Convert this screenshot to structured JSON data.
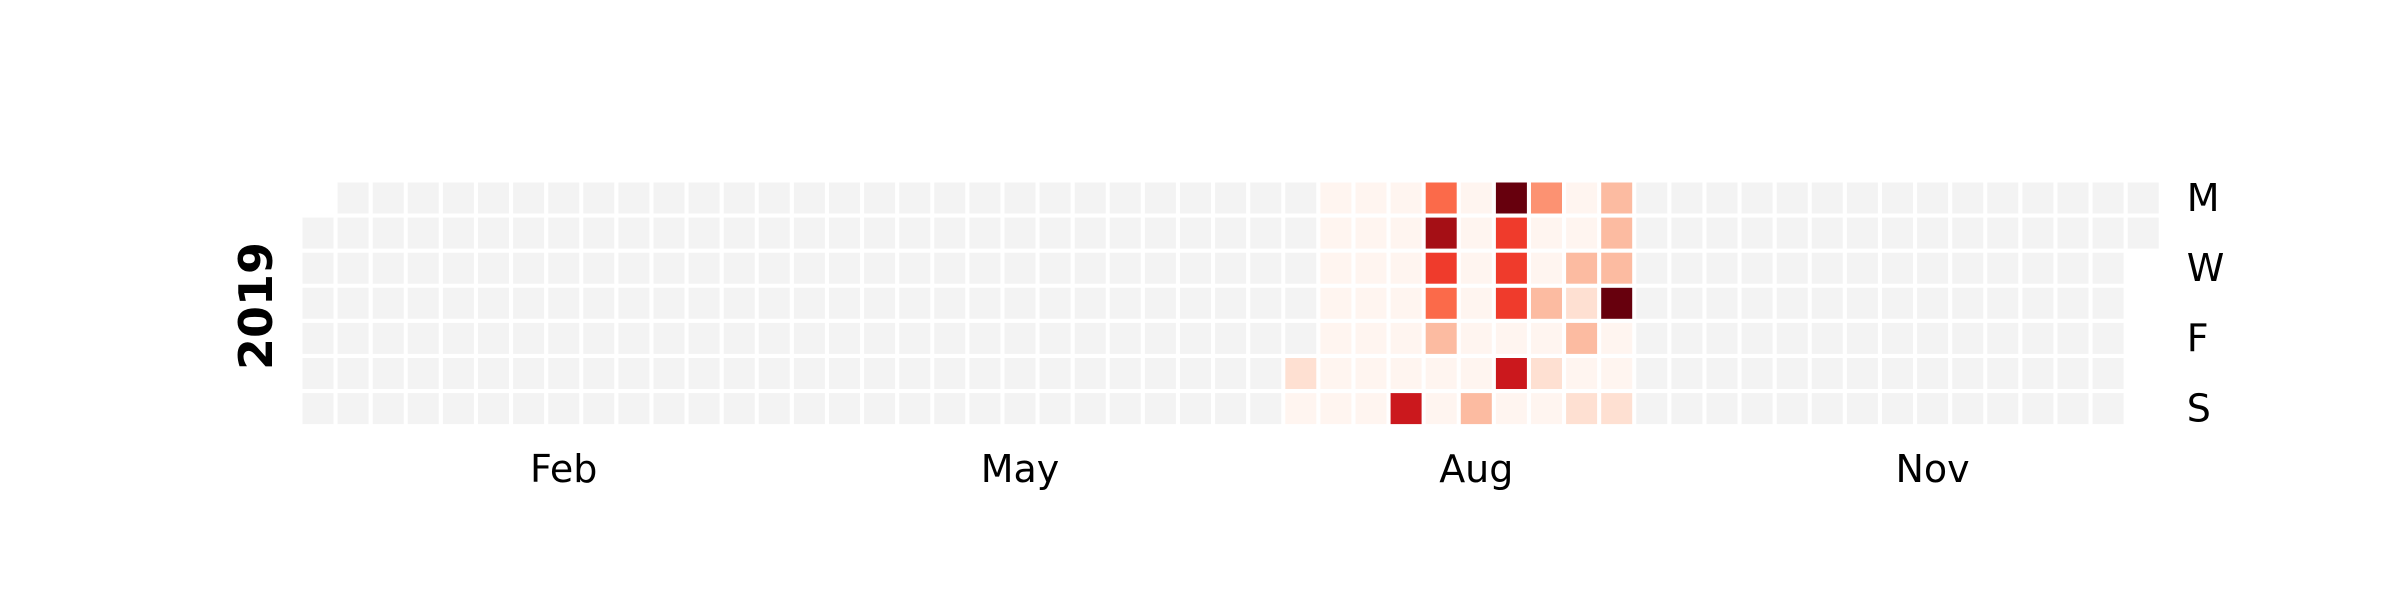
{
  "chart_data": {
    "type": "heatmap",
    "year_label": "2019",
    "rows": 7,
    "columns": 53,
    "first_column_start_row": 1,
    "weekday_labels": [
      {
        "label": "M",
        "row": 0
      },
      {
        "label": "W",
        "row": 2
      },
      {
        "label": "F",
        "row": 4
      },
      {
        "label": "S",
        "row": 6
      }
    ],
    "month_labels": [
      {
        "label": "Feb",
        "column": 7
      },
      {
        "label": "May",
        "column": 20
      },
      {
        "label": "Aug",
        "column": 33
      },
      {
        "label": "Nov",
        "column": 46
      }
    ],
    "colors": {
      "empty": "#f3f3f3",
      "scale": [
        "#fff5f0",
        "#fee0d2",
        "#fcbba1",
        "#fc9272",
        "#fb6a4a",
        "#ef3b2c",
        "#cb181d",
        "#a50f15",
        "#67000d"
      ]
    },
    "value_range": [
      0,
      8
    ],
    "cells": [
      {
        "column": 28,
        "values": [
          null,
          null,
          null,
          null,
          null,
          1,
          0
        ]
      },
      {
        "column": 29,
        "values": [
          0,
          0,
          0,
          0,
          0,
          0,
          0
        ]
      },
      {
        "column": 30,
        "values": [
          0,
          0,
          0,
          0,
          0,
          0,
          0
        ]
      },
      {
        "column": 31,
        "values": [
          0,
          0,
          0,
          0,
          0,
          0,
          6
        ]
      },
      {
        "column": 32,
        "values": [
          4,
          7,
          5,
          4,
          2,
          0,
          0
        ]
      },
      {
        "column": 33,
        "values": [
          0,
          0,
          0,
          0,
          0,
          0,
          2
        ]
      },
      {
        "column": 34,
        "values": [
          8,
          5,
          5,
          5,
          0,
          6,
          0
        ]
      },
      {
        "column": 35,
        "values": [
          3,
          0,
          0,
          2,
          0,
          1,
          0
        ]
      },
      {
        "column": 36,
        "values": [
          0,
          0,
          2,
          1,
          2,
          0,
          1
        ]
      },
      {
        "column": 37,
        "values": [
          2,
          2,
          2,
          8,
          0,
          0,
          1
        ]
      }
    ]
  }
}
